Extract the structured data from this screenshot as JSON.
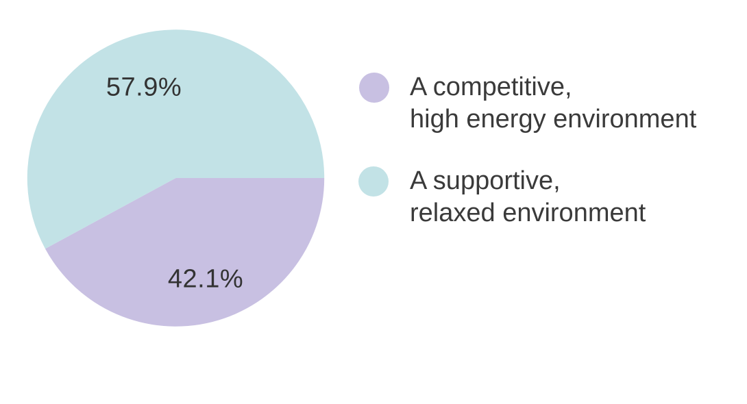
{
  "chart_data": {
    "type": "pie",
    "title": "",
    "start_angle_deg": 0,
    "direction": "clockwise",
    "legend_position": "right",
    "text_color": "#3a3a3a",
    "label_color": "#333333",
    "slices": [
      {
        "label": "A competitive, high energy environment",
        "value": 42.1,
        "display": "42.1%",
        "color": "#c8c0e2"
      },
      {
        "label": "A supportive, relaxed environment",
        "value": 57.9,
        "display": "57.9%",
        "color": "#c2e2e6"
      }
    ],
    "legend": [
      {
        "line1": "A competitive,",
        "line2": "high energy environment",
        "color": "#c8c0e2"
      },
      {
        "line1": "A supportive,",
        "line2": "relaxed environment",
        "color": "#c2e2e6"
      }
    ]
  }
}
